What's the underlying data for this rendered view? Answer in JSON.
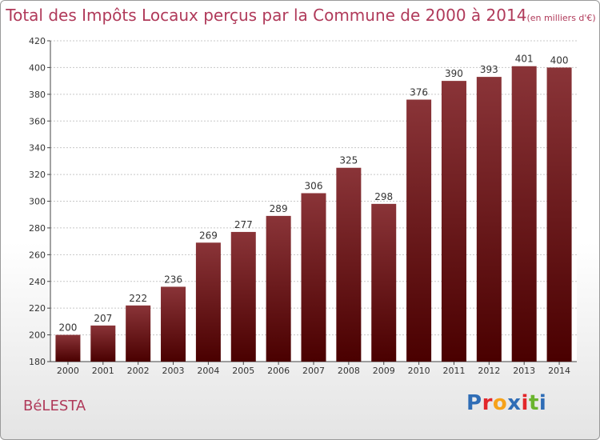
{
  "title": "Total des Impôts Locaux perçus par la Commune de 2000 à 2014",
  "unit": "(en milliers d'€)",
  "commune": "BéLESTA",
  "logo": {
    "text": "Proxiti",
    "letters": [
      "P",
      "r",
      "o",
      "x",
      "i",
      "t",
      "i"
    ],
    "colors": [
      "#2f6db6",
      "#e2262a",
      "#f6a21a",
      "#2f6db6",
      "#e2262a",
      "#6ab42d",
      "#2f6db6"
    ]
  },
  "colors": {
    "bar_top": "#8a3438",
    "bar_bottom": "#4a0000",
    "title": "#b03a5a"
  },
  "chart_data": {
    "type": "bar",
    "title": "Total des Impôts Locaux perçus par la Commune de 2000 à 2014",
    "xlabel": "",
    "ylabel": "",
    "categories": [
      "2000",
      "2001",
      "2002",
      "2003",
      "2004",
      "2005",
      "2006",
      "2007",
      "2008",
      "2009",
      "2010",
      "2011",
      "2012",
      "2013",
      "2014"
    ],
    "values": [
      200,
      207,
      222,
      236,
      269,
      277,
      289,
      306,
      325,
      298,
      376,
      390,
      393,
      401,
      400
    ],
    "ylim": [
      180,
      420
    ],
    "yticks": [
      180,
      200,
      220,
      240,
      260,
      280,
      300,
      320,
      340,
      360,
      380,
      400,
      420
    ],
    "grid": true
  }
}
